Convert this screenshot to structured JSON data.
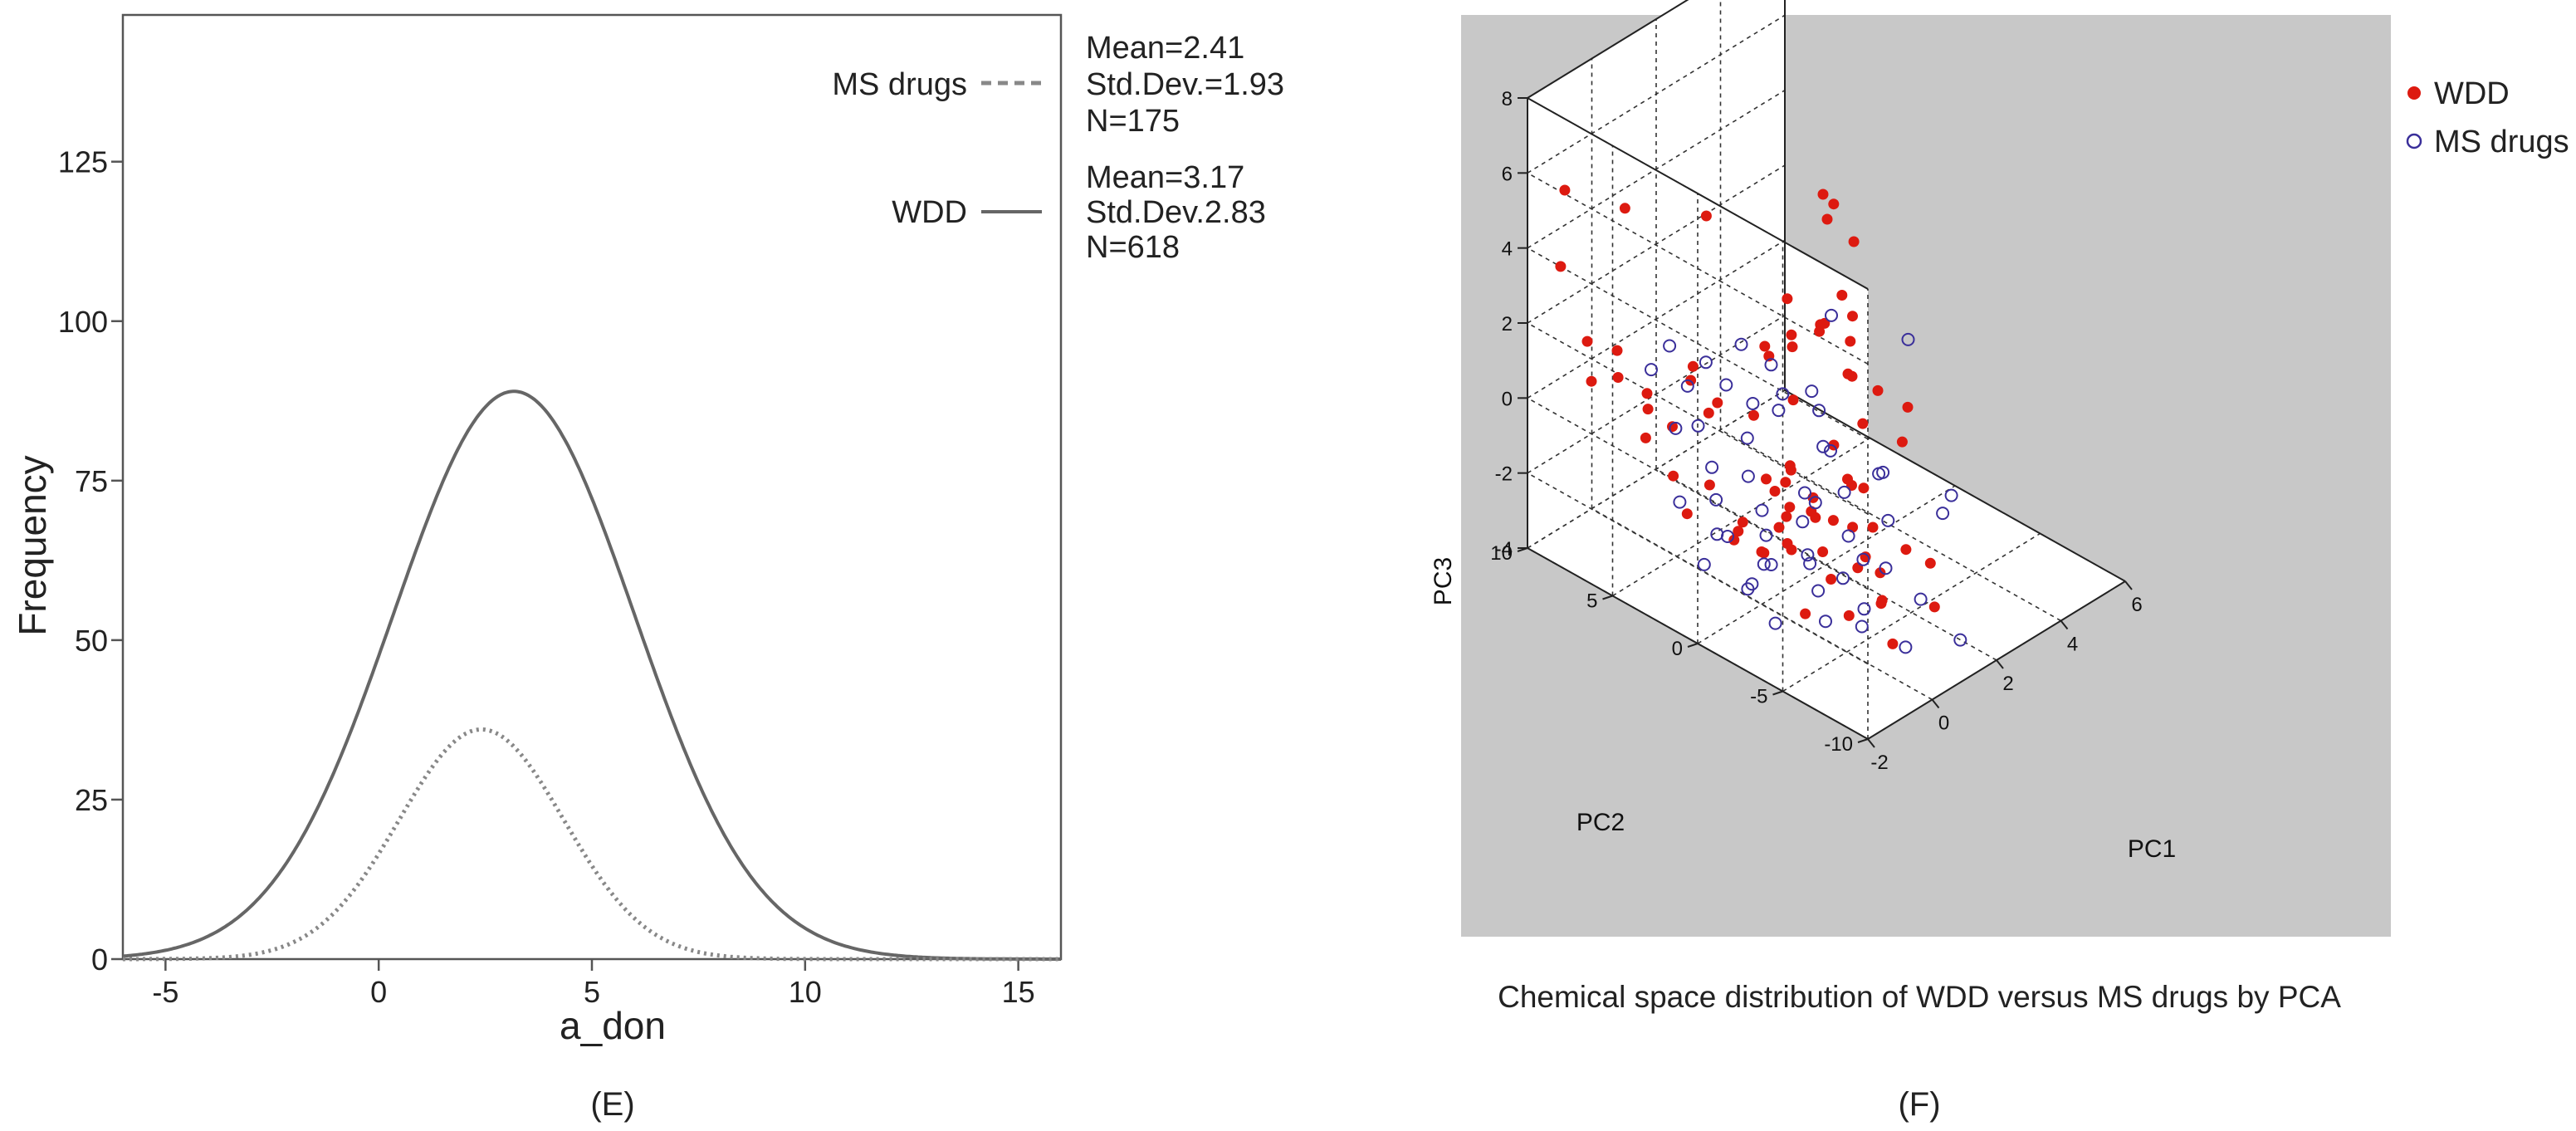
{
  "chart_data": [
    {
      "panel_label": "(E)",
      "type": "line",
      "xlabel": "a_don",
      "ylabel": "Frequency",
      "xlim": [
        -6,
        16
      ],
      "ylim": [
        0,
        148
      ],
      "xticks": [
        -5,
        0,
        5,
        10,
        15
      ],
      "yticks": [
        0,
        25,
        50,
        75,
        100,
        125
      ],
      "series": [
        {
          "name": "MS drugs",
          "style": "dashed",
          "color": "#808080",
          "mean": 2.41,
          "std": 1.93,
          "n": 175,
          "peak": 36,
          "stats": [
            "Mean=2.41",
            "Std.Dev.=1.93",
            "N=175"
          ]
        },
        {
          "name": "WDD",
          "style": "solid",
          "color": "#666666",
          "mean": 3.17,
          "std": 2.83,
          "n": 618,
          "peak": 89,
          "stats": [
            "Mean=3.17",
            "Std.Dev.2.83",
            "N=618"
          ]
        }
      ]
    },
    {
      "panel_label": "(F)",
      "type": "scatter",
      "title": "Chemical space distribution of WDD versus MS drugs by PCA",
      "xlabel": "PC1",
      "ylabel": "PC2",
      "zlabel": "PC3",
      "xlim": [
        -2,
        6
      ],
      "ylim": [
        -10,
        10
      ],
      "zlim": [
        -4,
        8
      ],
      "xticks": [
        -2,
        0,
        2,
        4,
        6
      ],
      "yticks": [
        -10,
        -5,
        0,
        5,
        10
      ],
      "zticks": [
        -4,
        -2,
        0,
        2,
        4,
        6,
        8
      ],
      "series": [
        {
          "name": "WDD",
          "marker": "filled-circle",
          "color": "#dd1a10",
          "points": [
            [
              -1.8,
              -2,
              -0.6
            ],
            [
              -1.6,
              -3,
              -1.0
            ],
            [
              -1.4,
              -1,
              -1.3
            ],
            [
              -1.2,
              -4,
              -0.9
            ],
            [
              -1.0,
              -2,
              -1.6
            ],
            [
              -0.8,
              -3,
              -1.2
            ],
            [
              -0.6,
              0,
              -1.5
            ],
            [
              -0.5,
              -5,
              -1.8
            ],
            [
              -0.3,
              -2,
              -1.0
            ],
            [
              -0.2,
              -6,
              -1.4
            ],
            [
              0.0,
              -1,
              -1.7
            ],
            [
              0.1,
              -4,
              -0.8
            ],
            [
              0.3,
              -3,
              -2.0
            ],
            [
              0.4,
              0,
              -1.2
            ],
            [
              0.6,
              -2,
              -1.5
            ],
            [
              0.8,
              -5,
              -1.1
            ],
            [
              1.0,
              -1,
              -1.8
            ],
            [
              1.2,
              -3,
              -0.7
            ],
            [
              1.4,
              1,
              -1.3
            ],
            [
              1.6,
              -2,
              -1.0
            ],
            [
              -1.7,
              2,
              -0.2
            ],
            [
              -1.5,
              4,
              0.2
            ],
            [
              -1.2,
              3,
              0.6
            ],
            [
              -0.9,
              5,
              0.4
            ],
            [
              -0.6,
              2,
              0.9
            ],
            [
              -0.4,
              6,
              0.3
            ],
            [
              -0.1,
              4,
              1.0
            ],
            [
              0.2,
              3,
              0.5
            ],
            [
              0.5,
              5,
              0.8
            ],
            [
              0.8,
              2,
              0.1
            ],
            [
              -1.0,
              -7,
              -2.0
            ],
            [
              -0.5,
              -8,
              -1.6
            ],
            [
              0.0,
              -7,
              -2.2
            ],
            [
              0.5,
              -6,
              -1.9
            ],
            [
              1.0,
              -8,
              -1.4
            ],
            [
              1.5,
              1,
              0.4
            ],
            [
              1.8,
              3,
              0.9
            ],
            [
              2.0,
              2,
              1.3
            ],
            [
              2.2,
              4,
              0.7
            ],
            [
              2.5,
              3,
              1.1
            ],
            [
              2.8,
              0,
              0.6
            ],
            [
              3.0,
              2,
              1.4
            ],
            [
              3.2,
              1,
              0.2
            ],
            [
              2.6,
              -1,
              -0.3
            ],
            [
              3.4,
              3,
              0.9
            ],
            [
              3.6,
              0,
              -0.2
            ],
            [
              3.8,
              2,
              0.5
            ],
            [
              4.0,
              -1,
              -0.6
            ],
            [
              2.9,
              4,
              1.6
            ],
            [
              3.3,
              -2,
              -0.9
            ],
            [
              -1.9,
              8,
              6.0
            ],
            [
              -1.5,
              9,
              3.5
            ],
            [
              0.5,
              9,
              4.0
            ],
            [
              2.5,
              8,
              3.0
            ],
            [
              -1.3,
              6,
              1.2
            ],
            [
              -1.6,
              7,
              1.0
            ],
            [
              -1.2,
              8,
              1.6
            ],
            [
              -0.8,
              7,
              1.4
            ],
            [
              5.2,
              6,
              2.0
            ],
            [
              5.4,
              6,
              2.3
            ],
            [
              5.6,
              7,
              2.2
            ],
            [
              5.5,
              5,
              1.5
            ],
            [
              4.6,
              4,
              0.8
            ],
            [
              4.4,
              3,
              0.6
            ],
            [
              3.9,
              4,
              0.2
            ],
            [
              0.0,
              -3,
              -0.4
            ],
            [
              0.2,
              -1,
              -0.6
            ],
            [
              -0.2,
              -2,
              -0.8
            ],
            [
              0.7,
              -4,
              -1.3
            ],
            [
              1.3,
              -6,
              -1.7
            ],
            [
              -1.3,
              -5,
              -2.3
            ],
            [
              -0.7,
              -9,
              -2.4
            ],
            [
              0.6,
              -9,
              -2.1
            ],
            [
              1.1,
              -4,
              -2.3
            ],
            [
              1.7,
              -1,
              -0.4
            ],
            [
              -1.8,
              1,
              -0.9
            ],
            [
              -1.1,
              1,
              -0.5
            ],
            [
              -0.4,
              -1,
              -0.2
            ],
            [
              0.9,
              0,
              -0.9
            ],
            [
              2.1,
              -2,
              -1.5
            ]
          ]
        },
        {
          "name": "MS drugs",
          "marker": "open-circle",
          "color": "#3a2f9a",
          "points": [
            [
              -1.6,
              -1,
              -1.1
            ],
            [
              -1.3,
              -3,
              -1.5
            ],
            [
              -1.0,
              -2,
              -1.9
            ],
            [
              -0.7,
              -4,
              -1.3
            ],
            [
              -0.4,
              -1,
              -1.7
            ],
            [
              -0.1,
              -3,
              -2.1
            ],
            [
              0.2,
              -2,
              -1.4
            ],
            [
              0.5,
              -5,
              -1.8
            ],
            [
              0.8,
              -1,
              -1.2
            ],
            [
              1.1,
              -3,
              -2.0
            ],
            [
              -1.4,
              0,
              -1.4
            ],
            [
              -0.9,
              1,
              -1.0
            ],
            [
              -0.5,
              2,
              -0.6
            ],
            [
              0.1,
              1,
              -0.9
            ],
            [
              0.6,
              2,
              -0.4
            ],
            [
              1.0,
              4,
              0.3
            ],
            [
              1.3,
              3,
              -0.1
            ],
            [
              1.7,
              2,
              0.2
            ],
            [
              2.0,
              5,
              0.6
            ],
            [
              2.4,
              4,
              0.1
            ],
            [
              -1.2,
              -6,
              -2.3
            ],
            [
              -0.6,
              -7,
              -2.5
            ],
            [
              0.0,
              -6,
              -2.6
            ],
            [
              0.7,
              -8,
              -2.2
            ],
            [
              1.2,
              -5,
              -2.4
            ],
            [
              -1.7,
              -4,
              -2.6
            ],
            [
              -1.5,
              -2,
              -2.3
            ],
            [
              -0.3,
              -9,
              -2.7
            ],
            [
              0.4,
              -4,
              -2.5
            ],
            [
              1.5,
              -2,
              -1.3
            ],
            [
              -1.1,
              3,
              0.5
            ],
            [
              -0.8,
              5,
              1.4
            ],
            [
              -0.2,
              4,
              0.9
            ],
            [
              0.3,
              6,
              1.2
            ],
            [
              0.9,
              5,
              0.7
            ],
            [
              1.6,
              -1,
              -0.5
            ],
            [
              1.9,
              0,
              -0.8
            ],
            [
              2.3,
              1,
              -0.3
            ],
            [
              2.7,
              -2,
              -1.4
            ],
            [
              3.1,
              -1,
              -1.9
            ],
            [
              3.5,
              -4,
              -2.4
            ],
            [
              4.3,
              -3,
              -2.6
            ],
            [
              1.4,
              -9,
              -3.4
            ],
            [
              5.6,
              2,
              -0.4
            ],
            [
              4.8,
              5,
              -0.1
            ],
            [
              -1.9,
              -3,
              -1.7
            ],
            [
              -1.8,
              0,
              -2.0
            ],
            [
              0.0,
              0,
              -1.5
            ],
            [
              0.6,
              -2,
              -1.1
            ],
            [
              1.8,
              -4,
              -1.7
            ],
            [
              -1.5,
              2,
              -1.0
            ],
            [
              -0.4,
              3,
              0.2
            ],
            [
              2.1,
              3,
              -0.7
            ],
            [
              2.6,
              2,
              -0.2
            ],
            [
              -0.9,
              -5,
              -1.9
            ]
          ]
        }
      ],
      "legend": "top-right"
    }
  ]
}
